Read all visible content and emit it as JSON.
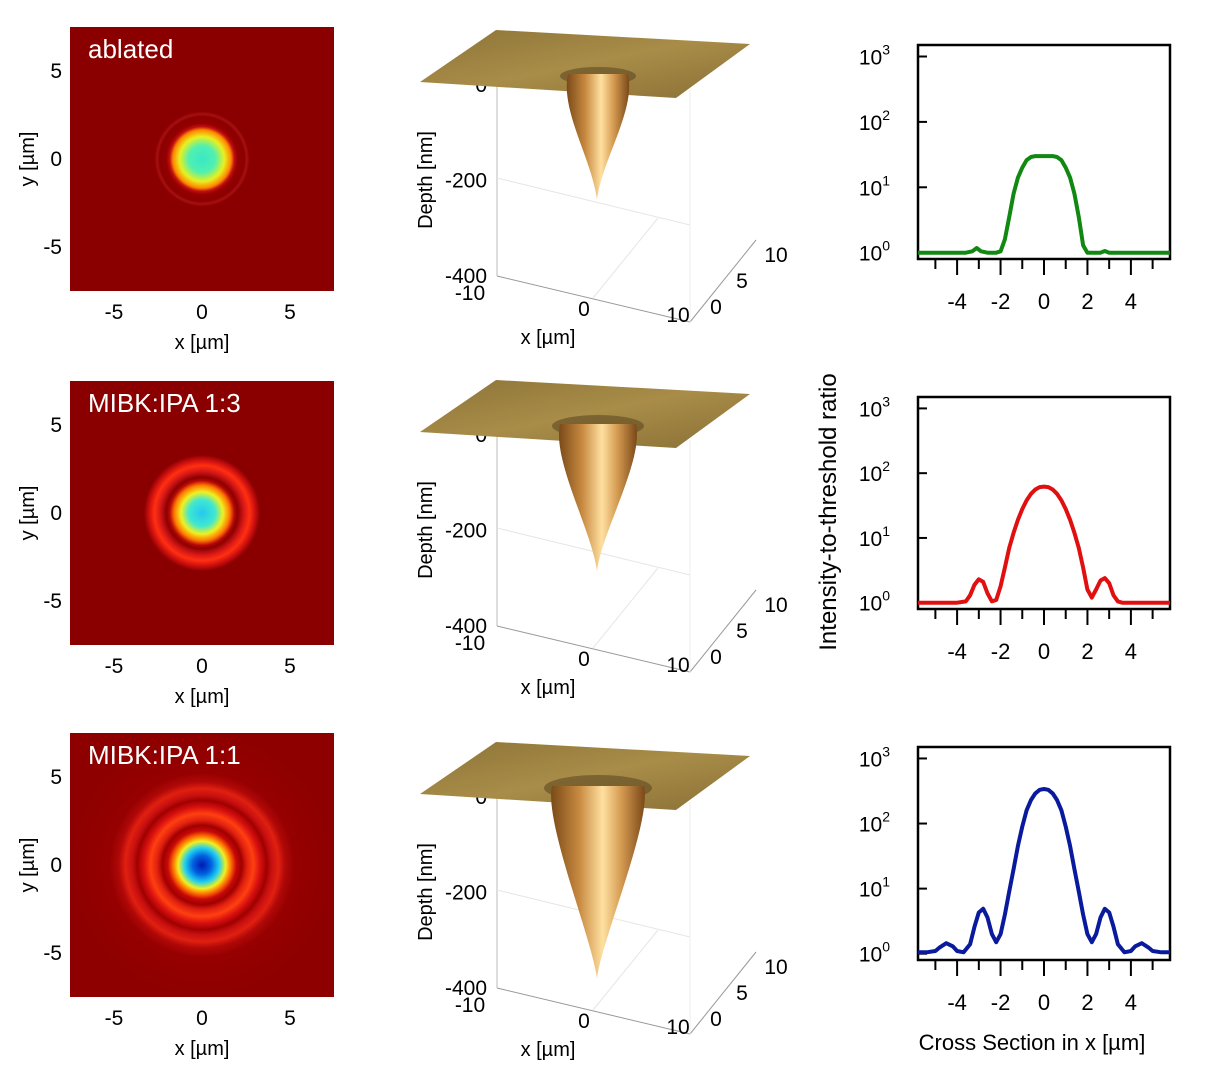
{
  "chart_data": [
    {
      "type": "heatmap",
      "row": 0,
      "label": "ablated",
      "xlabel": "x [µm]",
      "ylabel": "y [µm]",
      "xticks": [
        -5,
        0,
        5
      ],
      "yticks": [
        5,
        0,
        -5
      ],
      "xlim": [
        -7.5,
        7.5
      ],
      "ylim": [
        -7.5,
        7.5
      ],
      "center_color": "#39e8c8",
      "rings": 1
    },
    {
      "type": "heatmap",
      "row": 1,
      "label": "MIBK:IPA 1:3",
      "xlabel": "x [µm]",
      "ylabel": "y [µm]",
      "xticks": [
        -5,
        0,
        5
      ],
      "yticks": [
        5,
        0,
        -5
      ],
      "xlim": [
        -7.5,
        7.5
      ],
      "ylim": [
        -7.5,
        7.5
      ],
      "center_color": "#25c8f0",
      "rings": 2
    },
    {
      "type": "heatmap",
      "row": 2,
      "label": "MIBK:IPA 1:1",
      "xlabel": "x [µm]",
      "ylabel": "y [µm]",
      "xticks": [
        -5,
        0,
        5
      ],
      "yticks": [
        5,
        0,
        -5
      ],
      "xlim": [
        -7.5,
        7.5
      ],
      "ylim": [
        -7.5,
        7.5
      ],
      "center_color": "#0018b0",
      "rings": 3
    },
    {
      "type": "surface",
      "row": 0,
      "zlabel": "Depth [nm]",
      "xlabel": "x [µm]",
      "zticks": [
        0,
        -200,
        -400
      ],
      "xticks": [
        -10,
        0,
        10
      ],
      "yticks": [
        0,
        5,
        10
      ],
      "min_depth": -240
    },
    {
      "type": "surface",
      "row": 1,
      "zlabel": "Depth [nm]",
      "xlabel": "x [µm]",
      "zticks": [
        0,
        -200,
        -400
      ],
      "xticks": [
        -10,
        0,
        10
      ],
      "yticks": [
        0,
        5,
        10
      ],
      "min_depth": -285
    },
    {
      "type": "surface",
      "row": 2,
      "zlabel": "Depth [nm]",
      "xlabel": "x [µm]",
      "zticks": [
        0,
        -200,
        -400
      ],
      "xticks": [
        -10,
        0,
        10
      ],
      "yticks": [
        0,
        5,
        10
      ],
      "min_depth": -380
    },
    {
      "type": "line",
      "row": 0,
      "color": "#118811",
      "yscale": "log",
      "ylim": [
        0.8,
        1500
      ],
      "xlim": [
        -5.8,
        5.8
      ],
      "xticks": [
        -4,
        -2,
        0,
        2,
        4
      ],
      "ylabel": "Intensity-to-threshold ratio",
      "xlabel": "",
      "x": [
        -5.8,
        -3.6,
        -3.3,
        -3.1,
        -2.9,
        -2.6,
        -2.4,
        -2.2,
        -2.0,
        -1.8,
        -1.6,
        -1.4,
        -1.2,
        -1.0,
        -0.8,
        -0.6,
        -0.4,
        -0.2,
        0.0,
        0.2,
        0.4,
        0.6,
        0.8,
        1.0,
        1.2,
        1.4,
        1.6,
        1.8,
        2.0,
        2.6,
        2.8,
        3.0,
        3.4,
        5.8
      ],
      "y": [
        1,
        1,
        1.05,
        1.18,
        1.05,
        1,
        1,
        1,
        1.05,
        1.6,
        3.5,
        8,
        14,
        20,
        26,
        29,
        30,
        30,
        30,
        30,
        30,
        29,
        26,
        20,
        14,
        8,
        3.5,
        1.3,
        1,
        1,
        1.06,
        1,
        1,
        1
      ]
    },
    {
      "type": "line",
      "row": 1,
      "color": "#e01010",
      "yscale": "log",
      "ylim": [
        0.8,
        1500
      ],
      "xlim": [
        -5.8,
        5.8
      ],
      "xticks": [
        -4,
        -2,
        0,
        2,
        4
      ],
      "ylabel": "Intensity-to-threshold ratio",
      "xlabel": "",
      "x": [
        -5.8,
        -4.8,
        -4.0,
        -3.6,
        -3.4,
        -3.2,
        -3.0,
        -2.8,
        -2.6,
        -2.4,
        -2.2,
        -2.0,
        -1.8,
        -1.6,
        -1.4,
        -1.2,
        -1.0,
        -0.8,
        -0.6,
        -0.4,
        -0.2,
        0.0,
        0.2,
        0.4,
        0.6,
        0.8,
        1.0,
        1.2,
        1.4,
        1.6,
        1.8,
        2.0,
        2.2,
        2.4,
        2.6,
        2.8,
        3.0,
        3.2,
        3.4,
        3.6,
        4.0,
        4.8,
        5.8
      ],
      "y": [
        1,
        1,
        1,
        1.05,
        1.3,
        1.9,
        2.3,
        2.1,
        1.4,
        1.05,
        1.1,
        1.8,
        3.5,
        7,
        12,
        19,
        28,
        38,
        48,
        56,
        61,
        62,
        61,
        56,
        48,
        38,
        28,
        19,
        12,
        7,
        3.5,
        1.6,
        1.2,
        1.6,
        2.2,
        2.4,
        2.0,
        1.3,
        1.05,
        1,
        1,
        1,
        1
      ]
    },
    {
      "type": "line",
      "row": 2,
      "color": "#0a1a9c",
      "yscale": "log",
      "ylim": [
        0.8,
        1500
      ],
      "xlim": [
        -5.8,
        5.8
      ],
      "xticks": [
        -4,
        -2,
        0,
        2,
        4
      ],
      "ylabel": "Intensity-to-threshold ratio",
      "xlabel": "Cross Section in x [µm]",
      "x": [
        -5.8,
        -5.4,
        -5.0,
        -4.8,
        -4.5,
        -4.2,
        -4.0,
        -3.7,
        -3.4,
        -3.2,
        -3.0,
        -2.8,
        -2.6,
        -2.4,
        -2.2,
        -2.0,
        -1.8,
        -1.6,
        -1.4,
        -1.2,
        -1.0,
        -0.8,
        -0.6,
        -0.4,
        -0.2,
        0.0,
        0.2,
        0.4,
        0.6,
        0.8,
        1.0,
        1.2,
        1.4,
        1.6,
        1.8,
        2.0,
        2.2,
        2.4,
        2.6,
        2.8,
        3.0,
        3.2,
        3.4,
        3.7,
        4.0,
        4.2,
        4.5,
        4.8,
        5.0,
        5.4,
        5.8
      ],
      "y": [
        1.05,
        1.05,
        1.1,
        1.25,
        1.45,
        1.3,
        1.1,
        1.05,
        1.4,
        2.6,
        4.3,
        4.9,
        3.6,
        2.0,
        1.5,
        2.0,
        4,
        9,
        20,
        45,
        90,
        160,
        230,
        290,
        330,
        340,
        330,
        290,
        230,
        160,
        90,
        45,
        20,
        9,
        4,
        2.0,
        1.5,
        2.0,
        3.6,
        4.9,
        4.3,
        2.6,
        1.4,
        1.05,
        1.1,
        1.3,
        1.45,
        1.25,
        1.1,
        1.05,
        1.05
      ]
    }
  ],
  "shared_ylabel": "Intensity-to-threshold ratio"
}
